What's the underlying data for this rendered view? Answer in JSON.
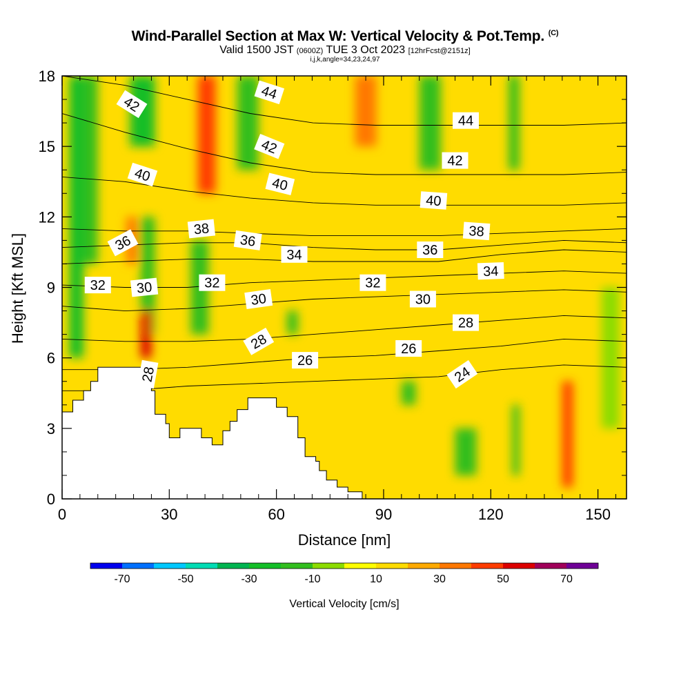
{
  "title": {
    "main": "Wind-Parallel Section at Max W: Vertical Velocity & Pot.Temp.",
    "copyright": "(C)",
    "valid_prefix": "Valid 1500 JST",
    "valid_utc": "(0600Z)",
    "valid_date": "TUE 3 Oct 2023",
    "forecast": "[12hrFcst@2151z]",
    "indices": "i,j,k,angle=34,23,24,97"
  },
  "chart_data": {
    "type": "heatmap",
    "xlabel": "Distance [nm]",
    "ylabel": "Height [Kft MSL]",
    "xlim": [
      0,
      158
    ],
    "ylim": [
      0,
      18
    ],
    "x_ticks": [
      0,
      30,
      60,
      90,
      120,
      150
    ],
    "x_tick_labels": [
      "0",
      "30",
      "60",
      "90",
      "120",
      "150"
    ],
    "y_ticks": [
      0,
      3,
      6,
      9,
      12,
      15,
      18
    ],
    "y_tick_labels": [
      "0",
      "3",
      "6",
      "9",
      "12",
      "15",
      "18"
    ],
    "colorbar": {
      "label": "Vertical Velocity [cm/s]",
      "boundaries": [
        -80,
        -70,
        -60,
        -50,
        -40,
        -30,
        -20,
        -10,
        0,
        10,
        20,
        30,
        40,
        50,
        60,
        70,
        80
      ],
      "colors": [
        "#0000ee",
        "#0070ff",
        "#00c8ff",
        "#00dcb4",
        "#00b450",
        "#14be28",
        "#32be1e",
        "#8cdc00",
        "#ffff00",
        "#ffdc00",
        "#ffaa00",
        "#ff7800",
        "#ff3c00",
        "#dc0000",
        "#a0005a",
        "#6e0096"
      ],
      "tick_values": [
        -70,
        -50,
        -30,
        -10,
        10,
        30,
        50,
        70
      ],
      "tick_labels": [
        "-70",
        "-50",
        "-30",
        "-10",
        "10",
        "30",
        "50",
        "70"
      ]
    },
    "terrain": [
      [
        0,
        3.7
      ],
      [
        3,
        3.7
      ],
      [
        3,
        4.2
      ],
      [
        6,
        4.2
      ],
      [
        6,
        4.6
      ],
      [
        8,
        4.6
      ],
      [
        8,
        5.0
      ],
      [
        10,
        5.0
      ],
      [
        10,
        5.6
      ],
      [
        25,
        5.6
      ],
      [
        25,
        4.6
      ],
      [
        26,
        4.6
      ],
      [
        26,
        3.6
      ],
      [
        29,
        3.6
      ],
      [
        29,
        3.2
      ],
      [
        30,
        3.2
      ],
      [
        30,
        2.6
      ],
      [
        33,
        2.6
      ],
      [
        33,
        3.0
      ],
      [
        39,
        3.0
      ],
      [
        39,
        2.6
      ],
      [
        42,
        2.6
      ],
      [
        42,
        2.3
      ],
      [
        45,
        2.3
      ],
      [
        45,
        2.9
      ],
      [
        47,
        2.9
      ],
      [
        47,
        3.3
      ],
      [
        49,
        3.3
      ],
      [
        49,
        3.8
      ],
      [
        52,
        3.8
      ],
      [
        52,
        4.3
      ],
      [
        60,
        4.3
      ],
      [
        60,
        3.9
      ],
      [
        63,
        3.9
      ],
      [
        63,
        3.5
      ],
      [
        66,
        3.5
      ],
      [
        66,
        2.6
      ],
      [
        68,
        2.6
      ],
      [
        68,
        1.8
      ],
      [
        71,
        1.8
      ],
      [
        71,
        1.6
      ],
      [
        72,
        1.6
      ],
      [
        72,
        1.2
      ],
      [
        74,
        1.2
      ],
      [
        74,
        0.8
      ],
      [
        77,
        0.8
      ],
      [
        77,
        0.5
      ],
      [
        80,
        0.5
      ],
      [
        80,
        0.3
      ],
      [
        84,
        0.3
      ],
      [
        84,
        0.0
      ]
    ],
    "w_field": {
      "background": 10,
      "columns": [
        {
          "x": 2,
          "w": 4,
          "top": 18,
          "bottom": 6,
          "value": -30
        },
        {
          "x": 6,
          "w": 4,
          "top": 18,
          "bottom": 10,
          "value": -20
        },
        {
          "x": 19,
          "w": 7,
          "top": 18,
          "bottom": 15,
          "value": -30
        },
        {
          "x": 18,
          "w": 3,
          "top": 12,
          "bottom": 10,
          "value": 30
        },
        {
          "x": 22,
          "w": 4,
          "top": 12,
          "bottom": 7,
          "value": -20
        },
        {
          "x": 22,
          "w": 3,
          "top": 8,
          "bottom": 6,
          "value": 50
        },
        {
          "x": 38,
          "w": 5,
          "top": 18,
          "bottom": 13,
          "value": 40
        },
        {
          "x": 49,
          "w": 6,
          "top": 18,
          "bottom": 14,
          "value": -20
        },
        {
          "x": 36,
          "w": 5,
          "top": 11,
          "bottom": 7,
          "value": -20
        },
        {
          "x": 63,
          "w": 3,
          "top": 8,
          "bottom": 7,
          "value": -20
        },
        {
          "x": 82,
          "w": 6,
          "top": 18,
          "bottom": 15,
          "value": 30
        },
        {
          "x": 100,
          "w": 6,
          "top": 18,
          "bottom": 14,
          "value": -20
        },
        {
          "x": 125,
          "w": 3,
          "top": 18,
          "bottom": 14,
          "value": -20
        },
        {
          "x": 95,
          "w": 4,
          "top": 5,
          "bottom": 4,
          "value": -20
        },
        {
          "x": 110,
          "w": 6,
          "top": 3,
          "bottom": 1,
          "value": -20
        },
        {
          "x": 126,
          "w": 2,
          "top": 4,
          "bottom": 1,
          "value": -20
        },
        {
          "x": 140,
          "w": 3,
          "top": 5,
          "bottom": 0.5,
          "value": 40
        },
        {
          "x": 151,
          "w": 5,
          "top": 9,
          "bottom": 3,
          "value": -10
        }
      ]
    },
    "theta_contours": [
      {
        "value": 24,
        "y": [
          4.6,
          4.6,
          4.8,
          4.9,
          5.0,
          5.1,
          5.2,
          5.5,
          5.7,
          5.6
        ],
        "labeled": true
      },
      {
        "value": 26,
        "y": [
          5.5,
          5.5,
          5.6,
          5.8,
          6.0,
          6.1,
          6.3,
          6.5,
          6.8,
          6.7
        ],
        "labeled": true
      },
      {
        "value": 28,
        "y": [
          6.8,
          6.7,
          6.7,
          6.8,
          7.0,
          7.2,
          7.4,
          7.6,
          7.8,
          7.7
        ],
        "labeled": true
      },
      {
        "value": 30,
        "y": [
          8.2,
          8.0,
          8.1,
          8.3,
          8.5,
          8.6,
          8.7,
          8.8,
          8.9,
          8.8
        ],
        "labeled": true
      },
      {
        "value": 32,
        "y": [
          9.1,
          9.0,
          9.0,
          9.2,
          9.3,
          9.4,
          9.5,
          9.6,
          9.7,
          9.6
        ],
        "labeled": true
      },
      {
        "value": 34,
        "y": [
          10.0,
          10.1,
          10.2,
          10.2,
          10.1,
          10.1,
          10.1,
          10.4,
          10.6,
          10.5
        ],
        "labeled": true
      },
      {
        "value": 36,
        "y": [
          10.7,
          10.8,
          10.9,
          10.9,
          10.7,
          10.6,
          10.6,
          10.8,
          11.0,
          10.9
        ],
        "labeled": true
      },
      {
        "value": 38,
        "y": [
          11.5,
          11.4,
          11.4,
          11.3,
          11.2,
          11.2,
          11.2,
          11.3,
          11.4,
          11.5
        ],
        "labeled": true
      },
      {
        "value": 40,
        "y": [
          13.7,
          13.5,
          13.1,
          12.8,
          12.6,
          12.5,
          12.5,
          12.5,
          12.5,
          12.6
        ],
        "labeled": true
      },
      {
        "value": 42,
        "y": [
          16.4,
          15.6,
          14.9,
          14.3,
          13.9,
          13.8,
          13.8,
          13.8,
          13.8,
          13.9
        ],
        "labeled": true
      },
      {
        "value": 44,
        "y": [
          18.0,
          17.6,
          17.0,
          16.4,
          16.0,
          15.9,
          15.9,
          15.9,
          15.9,
          16.0
        ],
        "labeled": true
      }
    ],
    "contour_labels": [
      {
        "text": "42",
        "x": 19.5,
        "y": 16.8,
        "rot": 32
      },
      {
        "text": "44",
        "x": 58,
        "y": 17.3,
        "rot": 18
      },
      {
        "text": "44",
        "x": 113,
        "y": 16.1,
        "rot": 0
      },
      {
        "text": "42",
        "x": 58,
        "y": 15.0,
        "rot": 22
      },
      {
        "text": "42",
        "x": 110,
        "y": 14.4,
        "rot": 0
      },
      {
        "text": "40",
        "x": 22.5,
        "y": 13.8,
        "rot": 18
      },
      {
        "text": "40",
        "x": 61,
        "y": 13.4,
        "rot": 14
      },
      {
        "text": "40",
        "x": 104,
        "y": 12.7,
        "rot": 4
      },
      {
        "text": "38",
        "x": 39,
        "y": 11.5,
        "rot": -6
      },
      {
        "text": "38",
        "x": 116,
        "y": 11.4,
        "rot": 4
      },
      {
        "text": "36",
        "x": 17,
        "y": 10.9,
        "rot": -28
      },
      {
        "text": "36",
        "x": 52,
        "y": 11.0,
        "rot": 8
      },
      {
        "text": "36",
        "x": 103,
        "y": 10.6,
        "rot": 0
      },
      {
        "text": "34",
        "x": 65,
        "y": 10.4,
        "rot": 0
      },
      {
        "text": "34",
        "x": 120,
        "y": 9.7,
        "rot": -2
      },
      {
        "text": "32",
        "x": 10,
        "y": 9.1,
        "rot": 0
      },
      {
        "text": "32",
        "x": 42,
        "y": 9.2,
        "rot": 0
      },
      {
        "text": "32",
        "x": 87,
        "y": 9.2,
        "rot": 0
      },
      {
        "text": "30",
        "x": 23,
        "y": 9.0,
        "rot": -6
      },
      {
        "text": "30",
        "x": 55,
        "y": 8.5,
        "rot": -8
      },
      {
        "text": "30",
        "x": 101,
        "y": 8.5,
        "rot": 0
      },
      {
        "text": "28",
        "x": 55,
        "y": 6.7,
        "rot": -30
      },
      {
        "text": "28",
        "x": 113,
        "y": 7.5,
        "rot": 0
      },
      {
        "text": "28",
        "x": 24,
        "y": 5.3,
        "rot": -80
      },
      {
        "text": "26",
        "x": 68,
        "y": 5.9,
        "rot": 0
      },
      {
        "text": "26",
        "x": 97,
        "y": 6.4,
        "rot": 0
      },
      {
        "text": "24",
        "x": 112,
        "y": 5.3,
        "rot": -34
      }
    ]
  }
}
